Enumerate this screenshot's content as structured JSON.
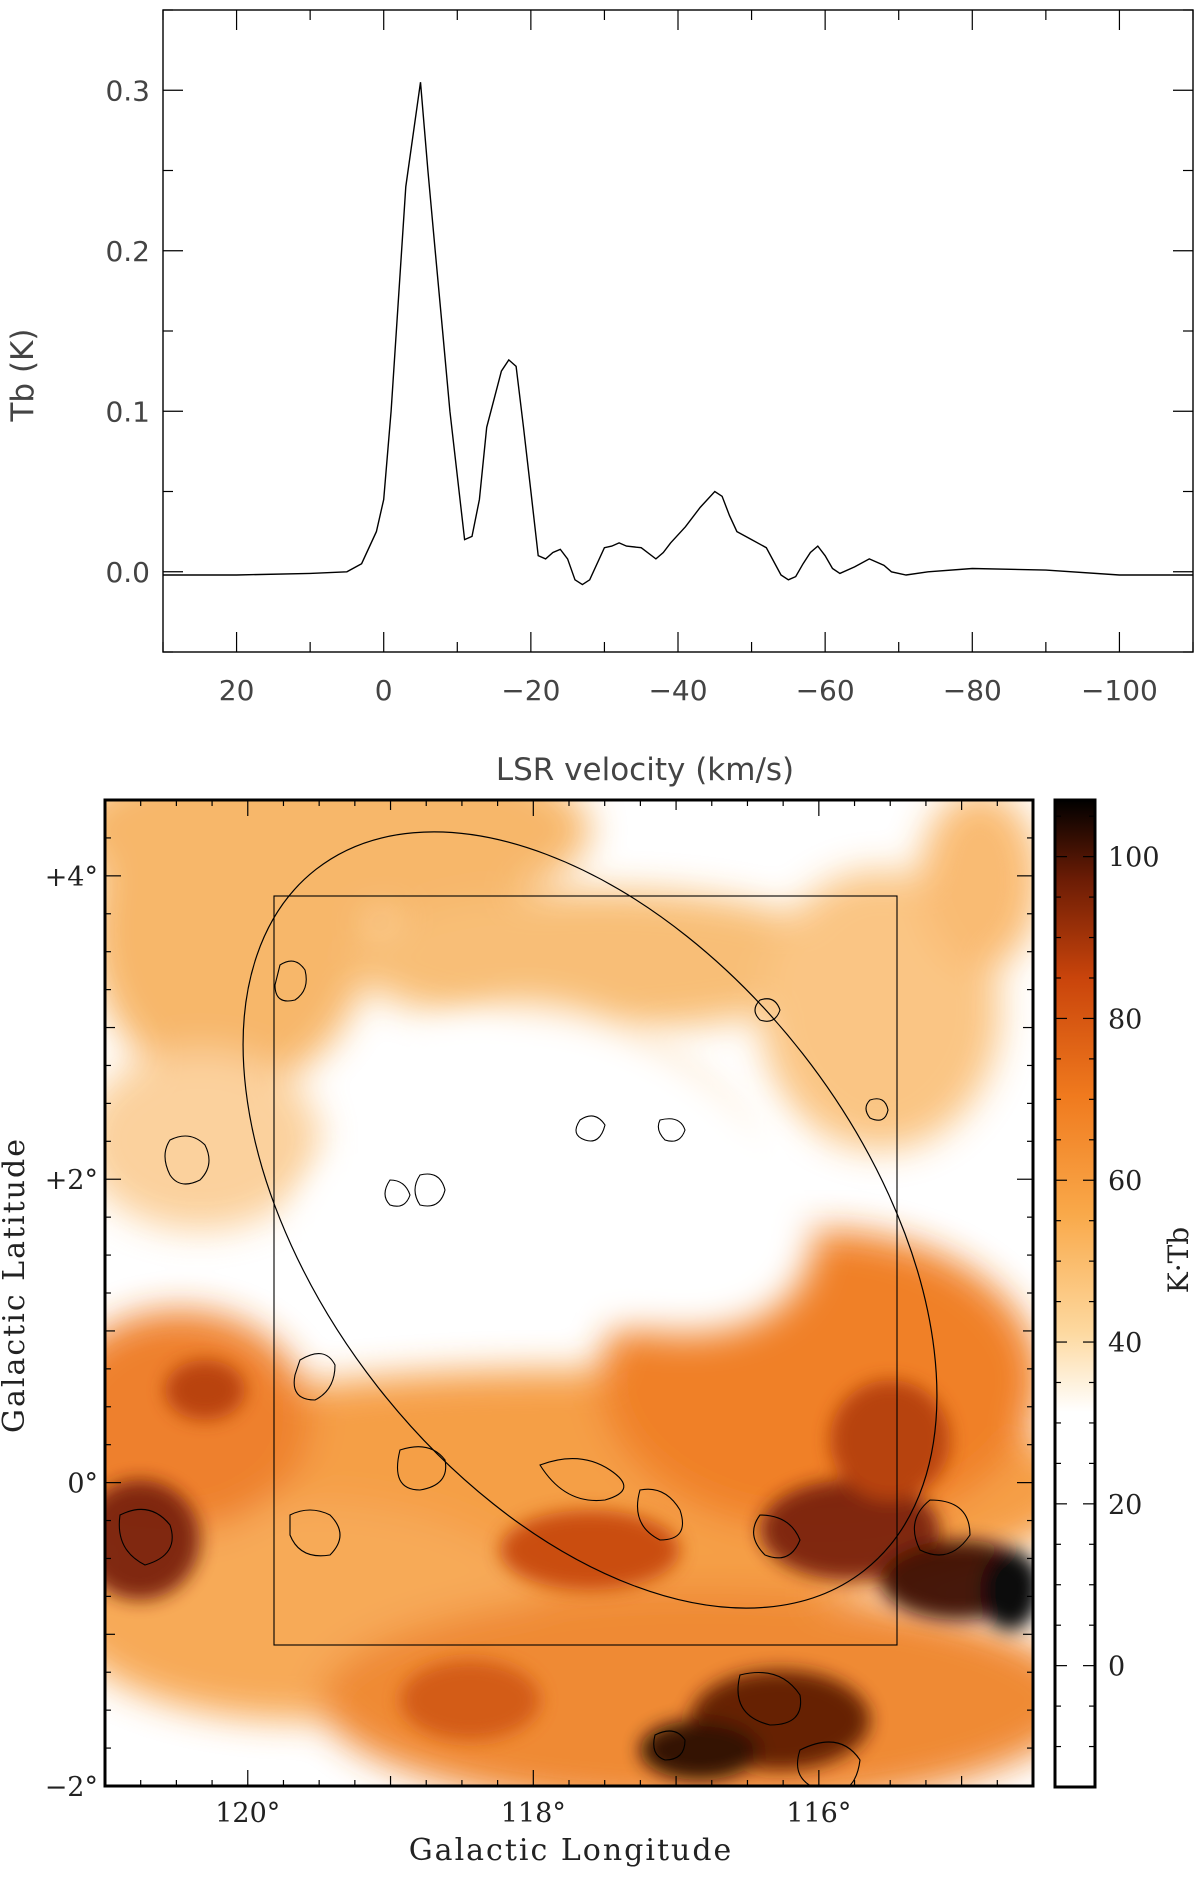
{
  "chart_data": [
    {
      "type": "line",
      "title": "",
      "xlabel": "LSR velocity (km/s)",
      "ylabel": "Tb (K)",
      "xlim": [
        30,
        -110
      ],
      "ylim": [
        -0.05,
        0.35
      ],
      "x_reversed": true,
      "xticks": [
        20,
        0,
        -20,
        -40,
        -60,
        -80,
        -100
      ],
      "xtick_labels": [
        "20",
        "0",
        "−20",
        "−40",
        "−60",
        "−80",
        "−100"
      ],
      "yticks": [
        0.0,
        0.1,
        0.2,
        0.3
      ],
      "ytick_labels": [
        "0.0",
        "0.1",
        "0.2",
        "0.3"
      ],
      "grid": false,
      "series": [
        {
          "x": [
            30,
            20,
            10,
            5,
            3,
            1,
            0,
            -1,
            -3,
            -5,
            -6,
            -7,
            -8,
            -9,
            -11,
            -12,
            -13,
            -14,
            -16,
            -17,
            -18,
            -19,
            -20,
            -21,
            -22,
            -23,
            -24,
            -25,
            -26,
            -27,
            -28,
            -30,
            -31,
            -32,
            -33,
            -35,
            -37,
            -38,
            -39,
            -41,
            -43,
            -45,
            -46,
            -47,
            -48,
            -50,
            -52,
            -54,
            -55,
            -56,
            -57,
            -58,
            -59,
            -60,
            -61,
            -62,
            -64,
            -66,
            -68,
            -69,
            -71,
            -74,
            -80,
            -90,
            -100,
            -110
          ],
          "y": [
            -0.002,
            -0.002,
            -0.001,
            0.0,
            0.005,
            0.025,
            0.045,
            0.1,
            0.24,
            0.305,
            0.25,
            0.2,
            0.15,
            0.1,
            0.02,
            0.022,
            0.045,
            0.09,
            0.125,
            0.132,
            0.128,
            0.09,
            0.05,
            0.01,
            0.008,
            0.012,
            0.014,
            0.008,
            -0.005,
            -0.008,
            -0.005,
            0.015,
            0.016,
            0.018,
            0.016,
            0.015,
            0.008,
            0.012,
            0.018,
            0.028,
            0.04,
            0.05,
            0.047,
            0.035,
            0.025,
            0.02,
            0.015,
            -0.002,
            -0.005,
            -0.003,
            0.005,
            0.012,
            0.016,
            0.01,
            0.002,
            -0.001,
            0.003,
            0.008,
            0.004,
            0.0,
            -0.002,
            0.0,
            0.002,
            0.001,
            -0.002,
            -0.002
          ]
        }
      ]
    },
    {
      "type": "heatmap",
      "title": "",
      "xlabel": "Galactic Longitude",
      "ylabel": "Galactic Latitude",
      "xlim": [
        121,
        114.5
      ],
      "ylim": [
        -2,
        4.5
      ],
      "xtick_labels": [
        "120°",
        "118°",
        "116°"
      ],
      "xtick_values": [
        120,
        118,
        116
      ],
      "ytick_labels": [
        "+4°",
        "+2°",
        "0°",
        "−2°"
      ],
      "ytick_values": [
        4,
        2,
        0,
        -2
      ],
      "colorbar": {
        "label": "K·Tb",
        "tick_labels": [
          "100",
          "80",
          "60",
          "40",
          "20",
          "0"
        ],
        "tick_values": [
          100,
          80,
          60,
          40,
          20,
          0
        ],
        "range": [
          -15,
          107
        ],
        "colormap": [
          "#ffffff",
          "#fdd9a0",
          "#f9a94a",
          "#f07a1e",
          "#c9440b",
          "#6b1c05",
          "#000000"
        ]
      },
      "overlays": {
        "rectangle": {
          "l": [
            119.7,
            115.5
          ],
          "b": [
            -1.1,
            3.95
          ]
        },
        "ellipse": {
          "center_l": 117.8,
          "center_b": 1.45,
          "note": "tilted shell outline"
        },
        "contours": true
      }
    }
  ]
}
